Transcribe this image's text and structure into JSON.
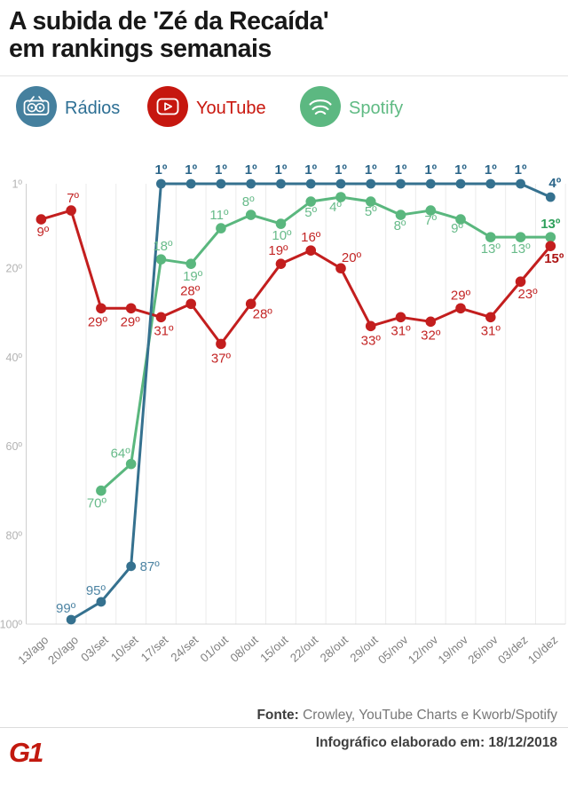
{
  "header": {
    "title_line1": "A subida de 'Zé da Recaída'",
    "title_line2": "em rankings semanais"
  },
  "legend": [
    {
      "label": "Rádios",
      "icon": "radio-icon",
      "icon_color": "#45809e",
      "text_color": "#2d6f94"
    },
    {
      "label": "YouTube",
      "icon": "youtube-icon",
      "icon_color": "#c6170f",
      "text_color": "#c9170e"
    },
    {
      "label": "Spotify",
      "icon": "spotify-icon",
      "icon_color": "#5cb881",
      "text_color": "#5fba83"
    }
  ],
  "chart_data": {
    "type": "line",
    "title": "A subida de 'Zé da Recaída' em rankings semanais",
    "categories": [
      "13/ago",
      "20/ago",
      "03/set",
      "10/set",
      "17/set",
      "24/set",
      "01/out",
      "08/out",
      "15/out",
      "22/out",
      "28/out",
      "29/out",
      "05/nov",
      "12/nov",
      "19/nov",
      "26/nov",
      "03/dez",
      "10/dez"
    ],
    "y_axis": {
      "inverted": true,
      "range": [
        1,
        100
      ],
      "ticks": [
        {
          "v": 1,
          "t": "1º"
        },
        {
          "v": 20,
          "t": "20º"
        },
        {
          "v": 40,
          "t": "40º"
        },
        {
          "v": 60,
          "t": "60º"
        },
        {
          "v": 80,
          "t": "80º"
        },
        {
          "v": 100,
          "t": "100º"
        }
      ]
    },
    "grid": "vertical-only",
    "legend_position": "top",
    "series": [
      {
        "name": "Spotify",
        "color": "#5ab77e",
        "label_color": "#68bb8a",
        "label_color_bold": "#2fa05b",
        "dot_r": 5.8,
        "values": [
          null,
          null,
          70,
          64,
          18,
          19,
          11,
          8,
          10,
          5,
          4,
          5,
          8,
          7,
          9,
          13,
          13,
          13
        ],
        "labels": [
          null,
          null,
          {
            "t": "70º",
            "dx": -5,
            "dy": 19
          },
          {
            "t": "64º",
            "dx": -12,
            "dy": -7
          },
          {
            "t": "18º",
            "dx": 2,
            "dy": -10
          },
          {
            "t": "19º",
            "dx": 2,
            "dy": 19
          },
          {
            "t": "11º",
            "dx": -2,
            "dy": -10
          },
          {
            "t": "8º",
            "dx": -3,
            "dy": -10
          },
          {
            "t": "10º",
            "dx": 1,
            "dy": 18
          },
          {
            "t": "5º",
            "dx": 0,
            "dy": 17
          },
          {
            "t": "4º",
            "dx": -6,
            "dy": 16
          },
          {
            "t": "5º",
            "dx": 0,
            "dy": 16
          },
          {
            "t": "8º",
            "dx": -1,
            "dy": 17
          },
          {
            "t": "7º",
            "dx": 0,
            "dy": 16
          },
          {
            "t": "9º",
            "dx": -4,
            "dy": 15
          },
          {
            "t": "13º",
            "dx": 0,
            "dy": 18
          },
          {
            "t": "13º",
            "dx": 0,
            "dy": 18
          },
          {
            "t": "13º",
            "dx": 0,
            "dy": -10,
            "b": 1
          }
        ]
      },
      {
        "name": "YouTube",
        "color": "#c31e1e",
        "label_color": "#c32525",
        "label_color_bold": "#ad1414",
        "dot_r": 5.8,
        "values": [
          9,
          7,
          29,
          29,
          31,
          28,
          37,
          28,
          19,
          16,
          20,
          33,
          31,
          32,
          29,
          31,
          23,
          15
        ],
        "labels": [
          {
            "t": "9º",
            "dx": 2,
            "dy": 19
          },
          {
            "t": "7º",
            "dx": 2,
            "dy": -9
          },
          {
            "t": "29º",
            "dx": -4,
            "dy": 20
          },
          {
            "t": "29º",
            "dx": -1,
            "dy": 20
          },
          {
            "t": "31º",
            "dx": 3,
            "dy": 20
          },
          {
            "t": "28º",
            "dx": -1,
            "dy": -10
          },
          {
            "t": "37º",
            "dx": 0,
            "dy": 21
          },
          {
            "t": "28º",
            "dx": 13,
            "dy": 16
          },
          {
            "t": "19º",
            "dx": -3,
            "dy": -10
          },
          {
            "t": "16º",
            "dx": 0,
            "dy": -10
          },
          {
            "t": "20º",
            "dx": 12,
            "dy": -7
          },
          {
            "t": "33º",
            "dx": 0,
            "dy": 21
          },
          {
            "t": "31º",
            "dx": 0,
            "dy": 20
          },
          {
            "t": "32º",
            "dx": 0,
            "dy": 20
          },
          {
            "t": "29º",
            "dx": 0,
            "dy": -10
          },
          {
            "t": "31º",
            "dx": 0,
            "dy": 20
          },
          {
            "t": "23º",
            "dx": 8,
            "dy": 19
          },
          {
            "t": "15º",
            "dx": 4,
            "dy": 19,
            "b": 1
          }
        ]
      },
      {
        "name": "Rádios",
        "color": "#35718f",
        "label_color": "#4d84a3",
        "label_color_bold": "#2b6589",
        "dot_r": 5.4,
        "values": [
          null,
          99,
          95,
          87,
          1,
          1,
          1,
          1,
          1,
          1,
          1,
          1,
          1,
          1,
          1,
          1,
          1,
          4
        ],
        "labels": [
          null,
          {
            "t": "99º",
            "dx": -6,
            "dy": -8
          },
          {
            "t": "95º",
            "dx": -6,
            "dy": -8
          },
          {
            "t": "87º",
            "dx": 21,
            "dy": 5
          },
          {
            "t": "1º",
            "dx": 0,
            "dy": -11,
            "b": 1
          },
          {
            "t": "1º",
            "dx": 0,
            "dy": -11,
            "b": 1
          },
          {
            "t": "1º",
            "dx": 0,
            "dy": -11,
            "b": 1
          },
          {
            "t": "1º",
            "dx": 0,
            "dy": -11,
            "b": 1
          },
          {
            "t": "1º",
            "dx": 0,
            "dy": -11,
            "b": 1
          },
          {
            "t": "1º",
            "dx": 0,
            "dy": -11,
            "b": 1
          },
          {
            "t": "1º",
            "dx": 0,
            "dy": -11,
            "b": 1
          },
          {
            "t": "1º",
            "dx": 0,
            "dy": -11,
            "b": 1
          },
          {
            "t": "1º",
            "dx": 0,
            "dy": -11,
            "b": 1
          },
          {
            "t": "1º",
            "dx": 0,
            "dy": -11,
            "b": 1
          },
          {
            "t": "1º",
            "dx": 0,
            "dy": -11,
            "b": 1
          },
          {
            "t": "1º",
            "dx": 0,
            "dy": -11,
            "b": 1
          },
          {
            "t": "1º",
            "dx": 0,
            "dy": -11,
            "b": 1
          },
          {
            "t": "4º",
            "dx": 5,
            "dy": -11,
            "b": 1
          }
        ]
      }
    ],
    "colors": {
      "grid": "#ebebeb",
      "axis": "#cfcfcf",
      "baseline": "#d8d8d8",
      "y_tick_text": "#b3b3b3",
      "x_tick_text": "#7f7f7f"
    }
  },
  "footer": {
    "source_label": "Fonte:",
    "source_text": " Crowley, YouTube Charts e Kworb/Spotify",
    "made_text": "Infográfico elaborado em: 18/12/2018",
    "logo_text": "G1"
  }
}
